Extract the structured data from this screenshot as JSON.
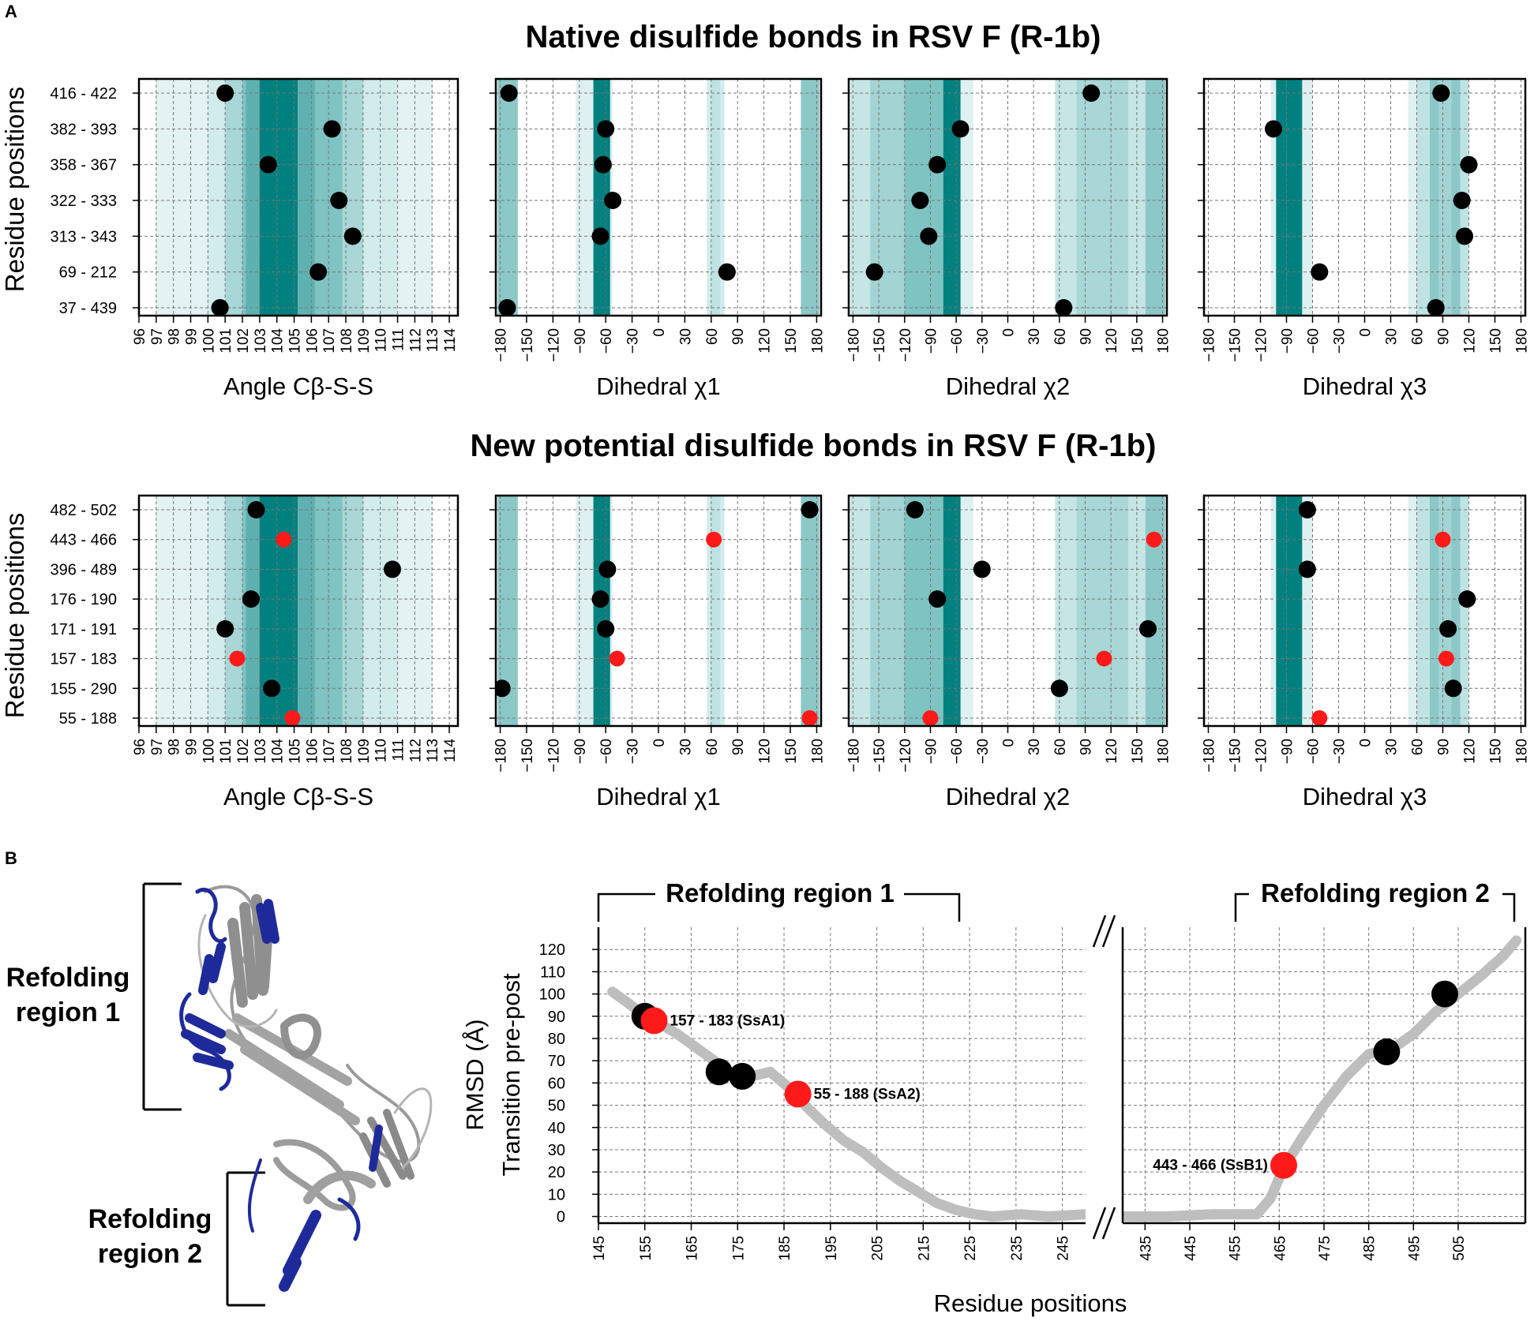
{
  "panel_labels": {
    "a": "A",
    "b": "B"
  },
  "colors": {
    "black_point": "#000000",
    "red_point": "#ff1a1a",
    "teal_dark": "#00807f",
    "teal_mid": "#5fb1b1",
    "teal_light": "#a9d6d6",
    "teal_faint": "#e3f2f2",
    "rmsd_line": "#bebebe",
    "grid": "#777777"
  },
  "section_titles": {
    "native": "Native disulfide bonds in RSV F (R-1b)",
    "new": "New potential disulfide bonds in RSV F (R-1b)"
  },
  "shared_axes": {
    "ylabel": "Residue positions",
    "angle_label": "Angle Cβ-S-S",
    "chi1_label": "Dihedral χ1",
    "chi2_label": "Dihedral χ2",
    "chi3_label": "Dihedral χ3",
    "angle_ticks": [
      "96",
      "97",
      "98",
      "99",
      "100",
      "101",
      "102",
      "103",
      "104",
      "105",
      "106",
      "107",
      "108",
      "109",
      "110",
      "111",
      "112",
      "113",
      "114"
    ],
    "dihedral_ticks": [
      "−180",
      "−150",
      "−120",
      "−90",
      "−60",
      "−30",
      "0",
      "30",
      "60",
      "90",
      "120",
      "150",
      "180"
    ]
  },
  "structure_labels": {
    "region1": [
      "Refolding",
      "region 1"
    ],
    "region2": [
      "Refolding",
      "region 2"
    ]
  },
  "chart_data": [
    {
      "id": "native",
      "type": "scatter",
      "title": "Native disulfide bonds in RSV F (R-1b)",
      "ylabel": "Residue positions",
      "categories": [
        "416 - 422",
        "382 - 393",
        "358 - 367",
        "322 - 333",
        "313 - 343",
        "69 - 212",
        "37 - 439"
      ],
      "colors": [
        "black",
        "black",
        "black",
        "black",
        "black",
        "black",
        "black"
      ],
      "angle": [
        101.0,
        107.2,
        103.5,
        107.6,
        108.4,
        106.4,
        100.7
      ],
      "chi1": [
        -170,
        -60,
        -63,
        -52,
        -66,
        78,
        -172
      ],
      "chi2": [
        97,
        -55,
        -82,
        -102,
        -92,
        -155,
        65
      ],
      "chi3": [
        88,
        -105,
        120,
        112,
        115,
        -52,
        82
      ],
      "xlim_angle": [
        96,
        114.5
      ],
      "xlim_dihedral": [
        -185,
        185
      ]
    },
    {
      "id": "new",
      "type": "scatter",
      "title": "New potential disulfide bonds in RSV F (R-1b)",
      "ylabel": "Residue positions",
      "categories": [
        "482 - 502",
        "443 - 466",
        "396 - 489",
        "176 - 190",
        "171 - 191",
        "157 - 183",
        "155 - 290",
        "55 - 188"
      ],
      "colors": [
        "black",
        "red",
        "black",
        "black",
        "black",
        "red",
        "black",
        "red"
      ],
      "angle": [
        102.8,
        104.4,
        110.7,
        102.5,
        101.0,
        101.7,
        103.7,
        104.9
      ],
      "chi1": [
        172,
        63,
        -58,
        -66,
        -60,
        -47,
        -178,
        172
      ],
      "chi2": [
        -108,
        170,
        -30,
        -82,
        163,
        112,
        60,
        -90
      ],
      "chi3": [
        -66,
        90,
        -66,
        118,
        96,
        94,
        102,
        -52
      ],
      "xlim_angle": [
        96,
        114.5
      ],
      "xlim_dihedral": [
        -185,
        185
      ]
    },
    {
      "id": "rmsd",
      "type": "line",
      "ylabel": [
        "RMSD (Å)",
        "Transition pre-post"
      ],
      "xlabel": "Residue positions",
      "ylim": [
        -3,
        130
      ],
      "yticks": [
        0,
        10,
        20,
        30,
        40,
        50,
        60,
        70,
        80,
        90,
        100,
        110,
        120
      ],
      "region_labels": [
        "Refolding region 1",
        "Refolding region 2"
      ],
      "segment1": {
        "xlim": [
          145,
          250
        ],
        "xticks": [
          145,
          155,
          165,
          175,
          185,
          195,
          205,
          215,
          225,
          235,
          245
        ],
        "x": [
          148,
          152,
          155,
          158,
          162,
          166,
          170,
          174,
          178,
          182,
          186,
          190,
          194,
          198,
          202,
          206,
          210,
          214,
          218,
          222,
          226,
          230,
          236,
          242,
          250
        ],
        "y": [
          101,
          95,
          90,
          87,
          82,
          76,
          70,
          64,
          63,
          65,
          58,
          49,
          41,
          34,
          29,
          22,
          16,
          11,
          6,
          3,
          1,
          0,
          1,
          0,
          1
        ]
      },
      "segment2": {
        "xlim": [
          430,
          520
        ],
        "xticks": [
          435,
          445,
          455,
          465,
          475,
          485,
          495,
          505
        ],
        "x": [
          430,
          440,
          450,
          455,
          460,
          463,
          466,
          470,
          475,
          480,
          485,
          490,
          495,
          500,
          505,
          510,
          515,
          518
        ],
        "y": [
          0,
          0,
          1,
          1,
          1,
          8,
          22,
          35,
          50,
          63,
          73,
          75,
          82,
          92,
          100,
          108,
          117,
          124
        ]
      },
      "points": [
        {
          "x": 155,
          "y": 90,
          "color": "black",
          "label": ""
        },
        {
          "x": 157,
          "y": 88,
          "color": "red",
          "label": "157 - 183 (SsA1)"
        },
        {
          "x": 171,
          "y": 65,
          "color": "black",
          "label": ""
        },
        {
          "x": 176,
          "y": 63,
          "color": "black",
          "label": ""
        },
        {
          "x": 188,
          "y": 55,
          "color": "red",
          "label": "55 - 188 (SsA2)"
        },
        {
          "x": 466,
          "y": 23,
          "color": "red",
          "label": "443 - 466 (SsB1)"
        },
        {
          "x": 489,
          "y": 74,
          "color": "black",
          "label": ""
        },
        {
          "x": 502,
          "y": 100,
          "color": "black",
          "label": ""
        }
      ]
    }
  ]
}
